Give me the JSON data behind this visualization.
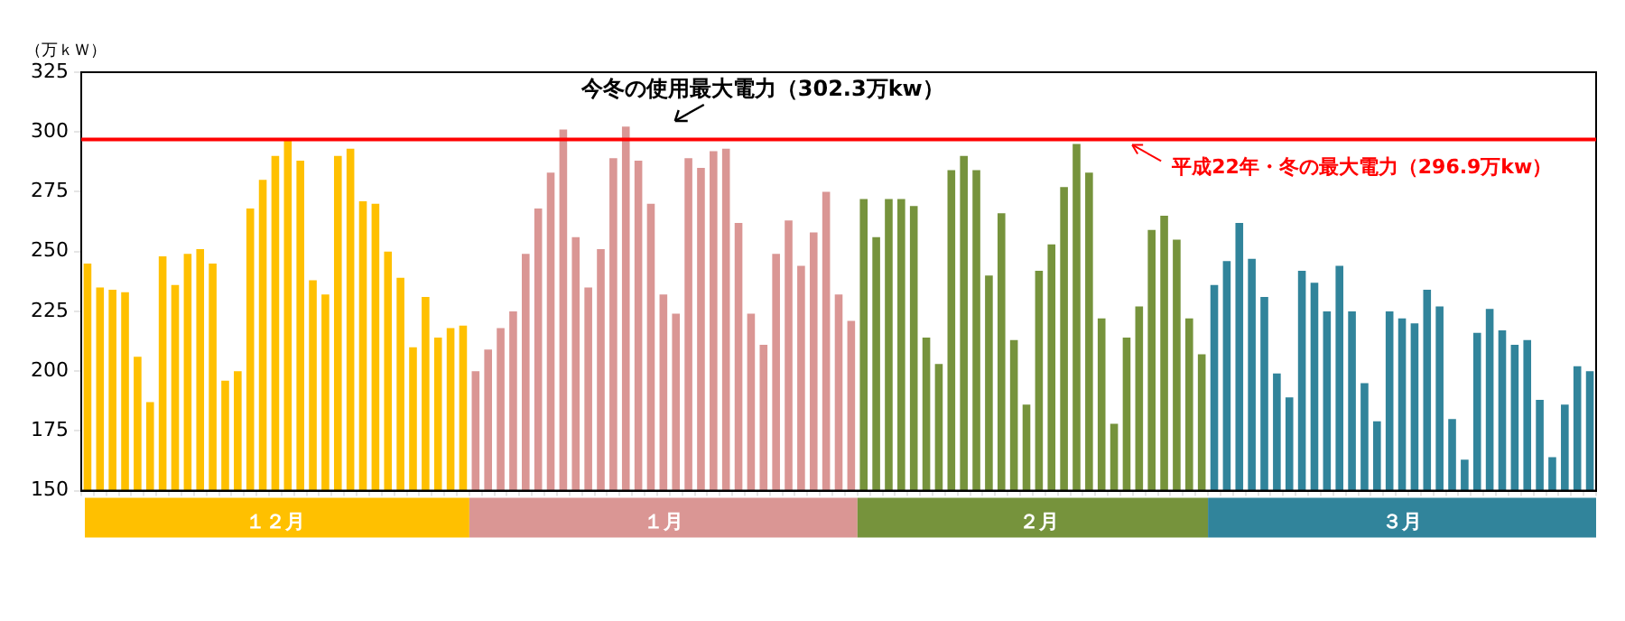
{
  "chart_data": {
    "type": "bar",
    "ylabel": "（万ｋＷ）",
    "categories": [
      null,
      null,
      null,
      null,
      null,
      null,
      null,
      null,
      null,
      null,
      null,
      null,
      null,
      null,
      null,
      "１２月",
      null,
      null,
      null,
      null,
      null,
      null,
      null,
      null,
      null,
      null,
      null,
      null,
      null,
      null,
      null,
      null,
      null,
      null,
      null,
      null,
      null,
      null,
      null,
      null,
      null,
      null,
      null,
      null,
      null,
      null,
      "１月",
      null,
      null,
      null,
      null,
      null,
      null,
      null,
      null,
      null,
      null,
      null,
      null,
      null,
      null,
      null,
      null,
      null,
      null,
      null,
      null,
      null,
      null,
      null,
      null,
      null,
      null,
      null,
      null,
      null,
      "２月",
      null,
      null,
      null,
      null,
      null,
      null,
      null,
      null,
      null,
      null,
      null,
      null,
      null,
      null,
      null,
      null,
      null,
      null,
      null,
      null,
      null,
      null,
      null,
      null,
      null,
      null,
      null,
      null,
      "３月",
      null,
      null,
      null,
      null,
      null,
      null,
      null,
      null,
      null,
      null,
      null,
      null,
      null,
      null,
      null
    ],
    "values": [
      245,
      235,
      234,
      233,
      206,
      187,
      248,
      236,
      249,
      251,
      245,
      196,
      200,
      268,
      280,
      290,
      297,
      288,
      238,
      232,
      290,
      293,
      271,
      270,
      250,
      239,
      210,
      231,
      214,
      218,
      219,
      200,
      209,
      218,
      225,
      249,
      268,
      283,
      301,
      256,
      235,
      251,
      289,
      302.3,
      288,
      270,
      232,
      224,
      289,
      285,
      292,
      293,
      262,
      224,
      211,
      249,
      263,
      244,
      258,
      275,
      232,
      221,
      272,
      256,
      272,
      272,
      269,
      214,
      203,
      284,
      290,
      284,
      240,
      266,
      213,
      186,
      242,
      253,
      277,
      295,
      283,
      222,
      178,
      214,
      227,
      259,
      265,
      255,
      222,
      207,
      236,
      246,
      262,
      247,
      231,
      199,
      189,
      242,
      237,
      225,
      244,
      225,
      195,
      179,
      225,
      222,
      220,
      234,
      227,
      180,
      163,
      216,
      226,
      217,
      211,
      213,
      188,
      164,
      186,
      202,
      200
    ],
    "colors": [
      "#ffc000",
      "#ffc000",
      "#ffc000",
      "#ffc000",
      "#ffc000",
      "#ffc000",
      "#ffc000",
      "#ffc000",
      "#ffc000",
      "#ffc000",
      "#ffc000",
      "#ffc000",
      "#ffc000",
      "#ffc000",
      "#ffc000",
      "#ffc000",
      "#ffc000",
      "#ffc000",
      "#ffc000",
      "#ffc000",
      "#ffc000",
      "#ffc000",
      "#ffc000",
      "#ffc000",
      "#ffc000",
      "#ffc000",
      "#ffc000",
      "#ffc000",
      "#ffc000",
      "#ffc000",
      "#ffc000",
      "#da9694",
      "#da9694",
      "#da9694",
      "#da9694",
      "#da9694",
      "#da9694",
      "#da9694",
      "#da9694",
      "#da9694",
      "#da9694",
      "#da9694",
      "#da9694",
      "#da9694",
      "#da9694",
      "#da9694",
      "#da9694",
      "#da9694",
      "#da9694",
      "#da9694",
      "#da9694",
      "#da9694",
      "#da9694",
      "#da9694",
      "#da9694",
      "#da9694",
      "#da9694",
      "#da9694",
      "#da9694",
      "#da9694",
      "#da9694",
      "#da9694",
      "#76933c",
      "#76933c",
      "#76933c",
      "#76933c",
      "#76933c",
      "#76933c",
      "#76933c",
      "#76933c",
      "#76933c",
      "#76933c",
      "#76933c",
      "#76933c",
      "#76933c",
      "#76933c",
      "#76933c",
      "#76933c",
      "#76933c",
      "#76933c",
      "#76933c",
      "#76933c",
      "#76933c",
      "#76933c",
      "#76933c",
      "#76933c",
      "#76933c",
      "#76933c",
      "#76933c",
      "#76933c",
      "#31849b",
      "#31849b",
      "#31849b",
      "#31849b",
      "#31849b",
      "#31849b",
      "#31849b",
      "#31849b",
      "#31849b",
      "#31849b",
      "#31849b",
      "#31849b",
      "#31849b",
      "#31849b",
      "#31849b",
      "#31849b",
      "#31849b",
      "#31849b",
      "#31849b",
      "#31849b",
      "#31849b",
      "#31849b",
      "#31849b",
      "#31849b",
      "#31849b",
      "#31849b",
      "#31849b",
      "#31849b",
      "#31849b",
      "#31849b",
      "#31849b"
    ],
    "ylim": [
      150,
      325
    ],
    "yticks": [
      150,
      175,
      200,
      225,
      250,
      275,
      300,
      325
    ],
    "grid": false,
    "legend": false,
    "ref_lines": [
      {
        "axis": "y",
        "value": 296.9,
        "label": "平成22年・冬の最大電力（296.9万kw）",
        "color": "#ff0000"
      }
    ],
    "annotations": [
      "今冬の使用最大電力（302.3万kw）"
    ]
  }
}
